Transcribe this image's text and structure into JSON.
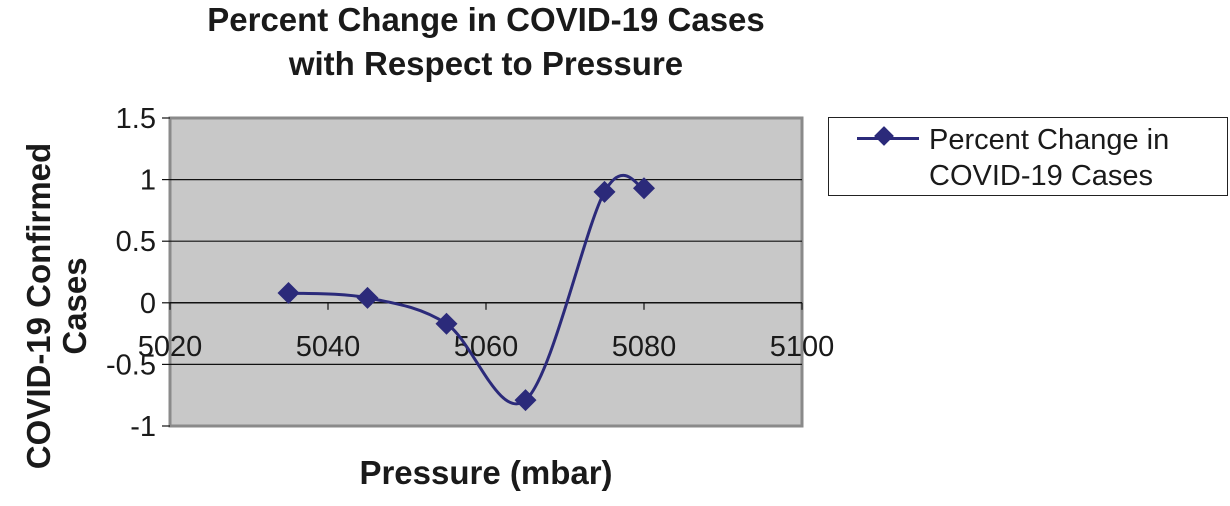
{
  "chart_data": {
    "type": "line",
    "title_line1": "Percent Change in COVID-19 Cases",
    "title_line2": "with Respect to Pressure",
    "xlabel": "Pressure (mbar)",
    "ylabel": "COVID-19 Confirmed Cases",
    "xlim": [
      5020,
      5100
    ],
    "ylim": [
      -1,
      1.5
    ],
    "x_ticks": [
      "5020",
      "5040",
      "5060",
      "5080",
      "5100"
    ],
    "y_ticks": [
      "1.5",
      "1",
      "0.5",
      "0",
      "-0.5",
      "-1"
    ],
    "grid": "horizontal",
    "legend_position": "right",
    "series": [
      {
        "name": "Percent Change in COVID-19 Cases",
        "color": "#2b2a7a",
        "marker": "diamond",
        "smooth": true,
        "x": [
          5035,
          5045,
          5055,
          5065,
          5075,
          5080
        ],
        "y": [
          0.08,
          0.04,
          -0.17,
          -0.79,
          0.9,
          0.93
        ]
      }
    ],
    "plot_background": "#c8c8c8"
  }
}
